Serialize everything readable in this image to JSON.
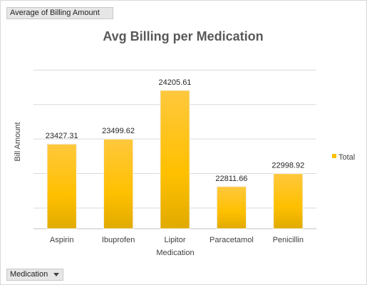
{
  "pivot": {
    "value_field": "Average of Billing Amount",
    "axis_field": "Medication"
  },
  "chart_data": {
    "type": "bar",
    "title": "Avg Billing per Medication",
    "xlabel": "Medication",
    "ylabel": "Bill Amount",
    "categories": [
      "Aspirin",
      "Ibuprofen",
      "Lipitor",
      "Paracetamol",
      "Penicillin"
    ],
    "series": [
      {
        "name": "Total",
        "values": [
          23427.31,
          23499.62,
          24205.61,
          22811.66,
          22998.92
        ]
      }
    ],
    "data_labels": [
      "23427.31",
      "23499.62",
      "24205.61",
      "22811.66",
      "22998.92"
    ],
    "ylim": [
      22200,
      24700
    ],
    "grid": true,
    "y_tick_labels_visible": false,
    "legend_position": "right",
    "bar_color": "#ffc000"
  }
}
